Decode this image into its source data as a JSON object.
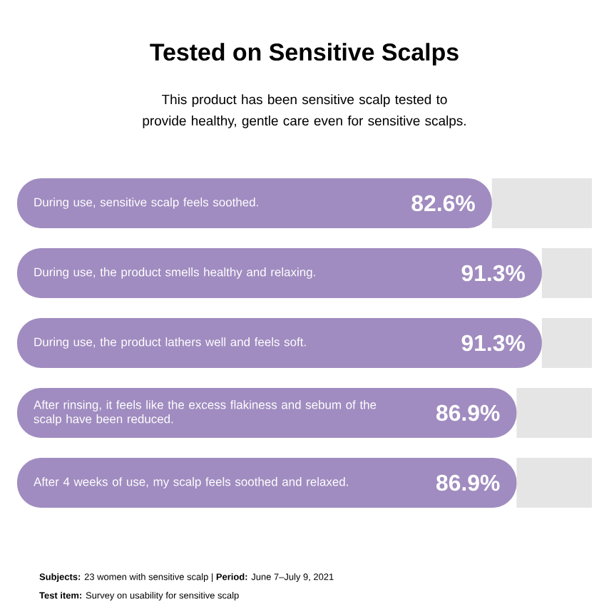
{
  "chart_data": {
    "type": "bar",
    "orientation": "horizontal",
    "title": "Tested on Sensitive Scalps",
    "subtitle": "This product has been sensitive scalp tested to provide healthy, gentle care even for sensitive scalps.",
    "categories": [
      "During use, sensitive scalp feels soothed.",
      "During use, the product smells healthy and relaxing.",
      "During use, the product lathers well and feels soft.",
      "After rinsing, it feels like the excess flakiness and sebum of the scalp have been reduced.",
      "After 4 weeks of use, my scalp feels soothed and relaxed."
    ],
    "stacked": true,
    "series": [
      {
        "color": "#a08cc0",
        "values": [
          82.6,
          91.3,
          91.3,
          86.9,
          86.9
        ],
        "value_labels": [
          "82.6%",
          "91.3%",
          "91.3%",
          "86.9%",
          "86.9%"
        ]
      },
      {
        "color": "#e5e5e5",
        "values": [
          17.4,
          8.7,
          8.7,
          13.1,
          13.1
        ]
      }
    ],
    "xlim": [
      0,
      100
    ],
    "annotations": [
      "**Subjects:** 23 women with sensitive scalp | **Period:** June 7–July 9, 2021",
      "**Test item:** Survey on usability for sensitive scalp"
    ]
  }
}
